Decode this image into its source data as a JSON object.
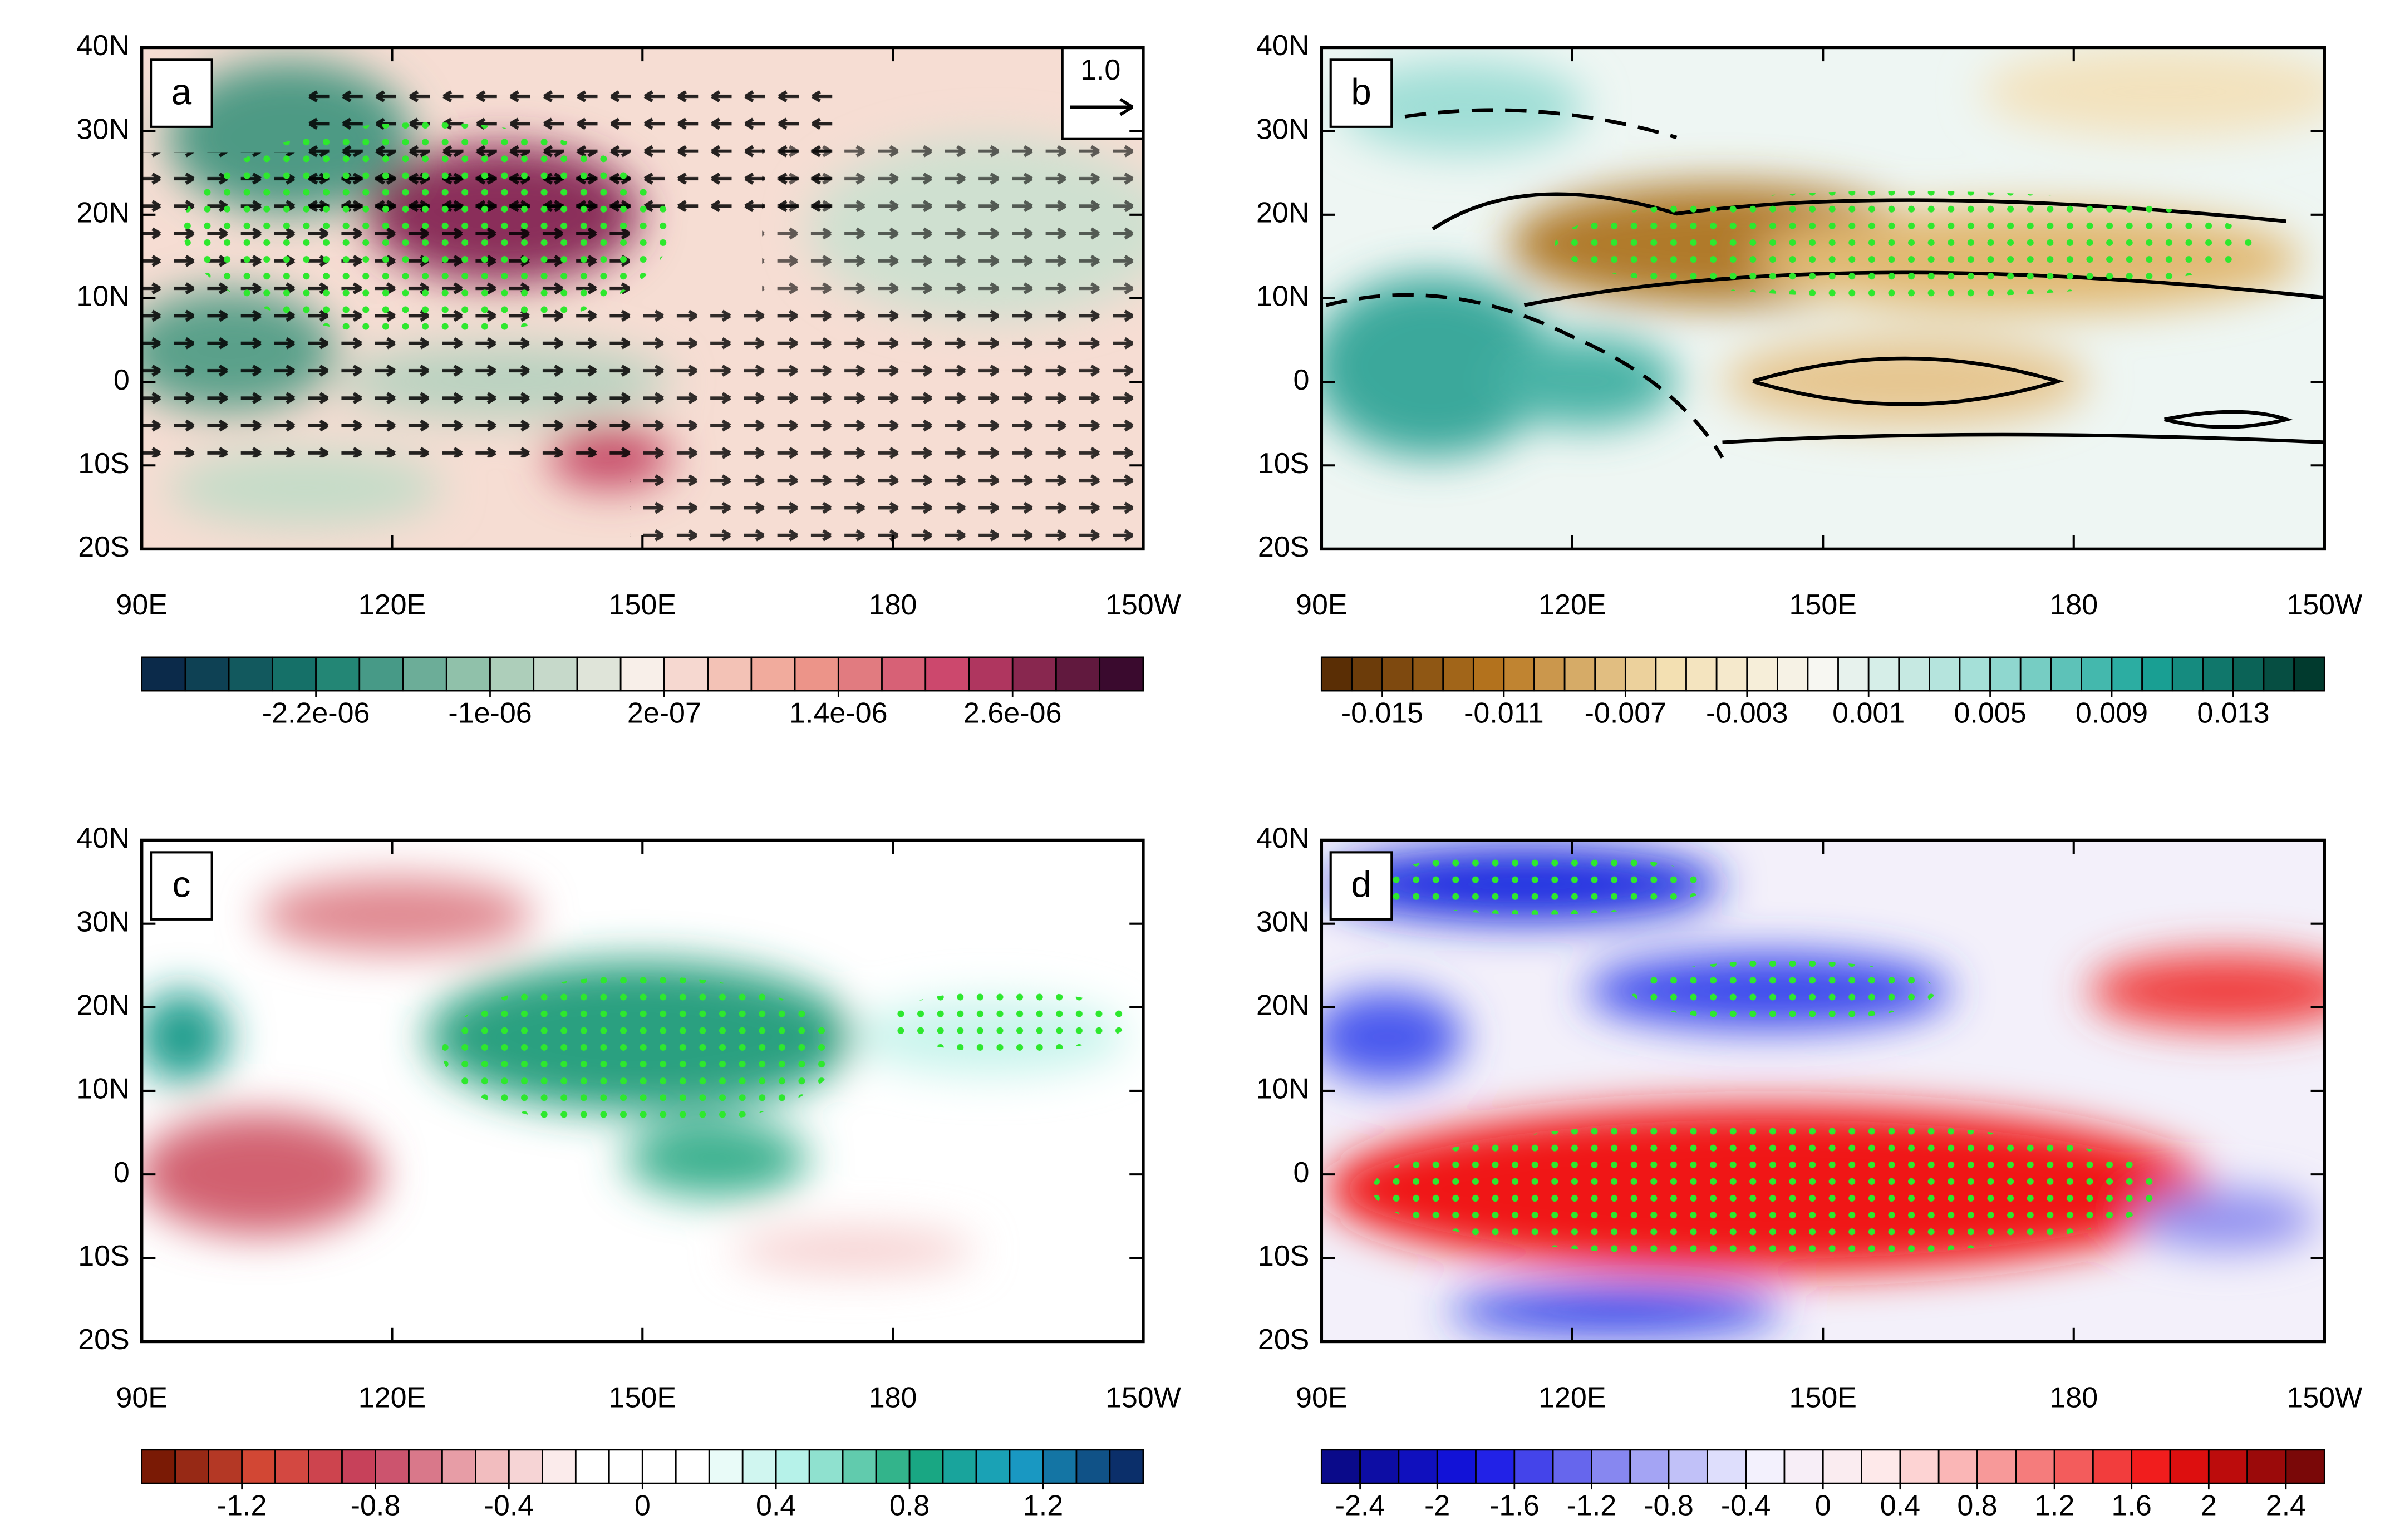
{
  "panels": [
    {
      "label": "a",
      "xlim": [
        90,
        210
      ],
      "ylim": [
        -20,
        40
      ],
      "xticks": [
        {
          "value": 90,
          "label": "90E"
        },
        {
          "value": 120,
          "label": "120E"
        },
        {
          "value": 150,
          "label": "150E"
        },
        180,
        {
          "value": 210,
          "label": "150W"
        }
      ],
      "yticks": [
        {
          "value": -20,
          "label": "20S"
        },
        {
          "value": -10,
          "label": "10S"
        },
        0,
        {
          "value": 10,
          "label": "10N"
        },
        {
          "value": 20,
          "label": "20N"
        },
        {
          "value": 30,
          "label": "30N"
        },
        {
          "value": 40,
          "label": "40N"
        }
      ],
      "vector_key": "1.0",
      "colorbar": {
        "range": [
          -3.4e-06,
          3.5e-06
        ],
        "boxes": 23,
        "colors": [
          "#0b2a4a",
          "#17806f",
          "#9cc7b0",
          "#f8efe9",
          "#ef9c8c",
          "#c9406a",
          "#3a0a2e"
        ],
        "ticks": [
          {
            "value": -2.2e-06,
            "label": "-2.2e-06"
          },
          {
            "value": -1e-06,
            "label": "-1e-06"
          },
          {
            "value": 2e-07,
            "label": "2e-07"
          },
          {
            "value": 1.4e-06,
            "label": "1.4e-06"
          },
          {
            "value": 2.6e-06,
            "label": "2.6e-06"
          }
        ]
      }
    },
    {
      "label": "b",
      "xlim": [
        90,
        210
      ],
      "ylim": [
        -20,
        40
      ],
      "xticks": [
        {
          "value": 90,
          "label": "90E"
        },
        {
          "value": 120,
          "label": "120E"
        },
        {
          "value": 150,
          "label": "150E"
        },
        180,
        {
          "value": 210,
          "label": "150W"
        }
      ],
      "yticks": [
        {
          "value": -20,
          "label": "20S"
        },
        {
          "value": -10,
          "label": "10S"
        },
        0,
        {
          "value": 10,
          "label": "10N"
        },
        {
          "value": 20,
          "label": "20N"
        },
        {
          "value": 30,
          "label": "30N"
        },
        {
          "value": 40,
          "label": "40N"
        }
      ],
      "colorbar": {
        "range": [
          -0.017,
          0.016
        ],
        "boxes": 33,
        "colors": [
          "#5a2e05",
          "#b9771f",
          "#f3deae",
          "#f7f7f2",
          "#9fded6",
          "#1ba69a",
          "#013a2e"
        ],
        "ticks": [
          -0.015,
          -0.011,
          -0.007,
          -0.003,
          0.001,
          0.005,
          0.009,
          0.013
        ]
      }
    },
    {
      "label": "c",
      "xlim": [
        90,
        210
      ],
      "ylim": [
        -20,
        40
      ],
      "xticks": [
        {
          "value": 90,
          "label": "90E"
        },
        {
          "value": 120,
          "label": "120E"
        },
        {
          "value": 150,
          "label": "150E"
        },
        180,
        {
          "value": 210,
          "label": "150W"
        }
      ],
      "yticks": [
        {
          "value": -20,
          "label": "20S"
        },
        {
          "value": -10,
          "label": "10S"
        },
        0,
        {
          "value": 10,
          "label": "10N"
        },
        {
          "value": 20,
          "label": "20N"
        },
        {
          "value": 30,
          "label": "30N"
        },
        {
          "value": 40,
          "label": "40N"
        }
      ],
      "colorbar": {
        "range": [
          -1.5,
          1.5
        ],
        "boxes": 30,
        "colors": [
          "#7a1a05",
          "#d84a38",
          "#c4405f",
          "#f0b5b8",
          "#ffffff",
          "#ffffff",
          "#aef0e6",
          "#19a878",
          "#1aa0c8",
          "#0b2f6a"
        ],
        "ticks": [
          -1.2,
          -0.8,
          -0.4,
          0,
          0.4,
          0.8,
          1.2
        ]
      }
    },
    {
      "label": "d",
      "xlim": [
        90,
        210
      ],
      "ylim": [
        -20,
        40
      ],
      "xticks": [
        {
          "value": 90,
          "label": "90E"
        },
        {
          "value": 120,
          "label": "120E"
        },
        {
          "value": 150,
          "label": "150E"
        },
        180,
        {
          "value": 210,
          "label": "150W"
        }
      ],
      "yticks": [
        {
          "value": -20,
          "label": "20S"
        },
        {
          "value": -10,
          "label": "10S"
        },
        0,
        {
          "value": 10,
          "label": "10N"
        },
        {
          "value": 20,
          "label": "20N"
        },
        {
          "value": 30,
          "label": "30N"
        },
        {
          "value": 40,
          "label": "40N"
        }
      ],
      "colorbar": {
        "range": [
          -2.6,
          2.6
        ],
        "boxes": 26,
        "colors": [
          "#0a0a8a",
          "#1414e6",
          "#8c8cf0",
          "#f2f2ff",
          "#ffe8e8",
          "#f58080",
          "#f01010",
          "#7a0808"
        ],
        "ticks": [
          -2.4,
          -2,
          -1.6,
          -1.2,
          -0.8,
          -0.4,
          0,
          0.4,
          0.8,
          1.2,
          1.6,
          2,
          2.4
        ]
      }
    }
  ]
}
